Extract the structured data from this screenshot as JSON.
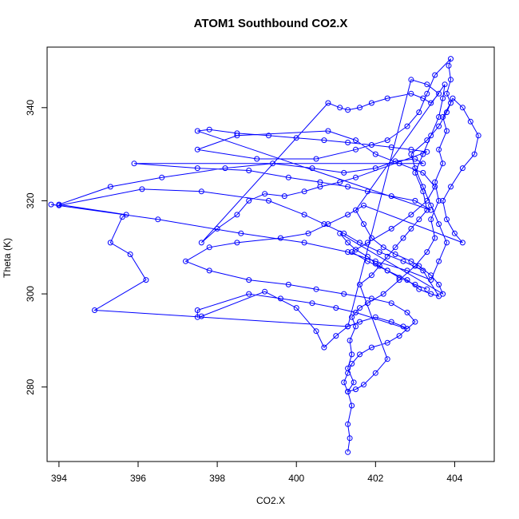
{
  "chart_data": {
    "type": "line",
    "title": "ATOM1 Southbound CO2.X",
    "xlabel": "CO2.X",
    "ylabel": "Theta (K)",
    "xlim": [
      393.7,
      405.0
    ],
    "ylim": [
      264,
      353
    ],
    "xticks": [
      394,
      396,
      398,
      400,
      402,
      404
    ],
    "yticks": [
      280,
      300,
      320,
      340
    ],
    "grid": false,
    "legend": "none",
    "marker": "open-circle",
    "color": "#0000ff",
    "series": [
      {
        "points": [
          [
            401.3,
            266
          ],
          [
            401.35,
            269
          ],
          [
            401.3,
            272
          ],
          [
            401.4,
            276
          ],
          [
            401.3,
            279
          ],
          [
            401.45,
            281
          ],
          [
            401.3,
            284
          ],
          [
            401.4,
            287
          ],
          [
            401.35,
            290
          ],
          [
            401.5,
            293
          ],
          [
            401.4,
            295
          ],
          [
            401.6,
            297
          ],
          [
            401.8,
            298
          ],
          [
            402.2,
            300
          ],
          [
            402.6,
            303
          ],
          [
            403.0,
            306
          ],
          [
            403.3,
            309
          ],
          [
            403.5,
            312
          ],
          [
            403.4,
            316
          ],
          [
            403.6,
            320
          ],
          [
            403.5,
            324
          ],
          [
            403.7,
            328
          ],
          [
            403.6,
            331
          ],
          [
            403.8,
            335
          ],
          [
            403.7,
            338
          ],
          [
            403.9,
            341
          ],
          [
            403.8,
            343
          ],
          [
            403.9,
            346
          ],
          [
            403.85,
            349
          ],
          [
            403.9,
            350.5
          ],
          [
            403.5,
            347
          ],
          [
            403.3,
            343
          ],
          [
            403.1,
            339
          ],
          [
            402.8,
            336
          ],
          [
            402.3,
            333
          ],
          [
            401.5,
            331
          ],
          [
            400.5,
            329
          ],
          [
            399.0,
            329
          ],
          [
            397.5,
            331
          ],
          [
            398.5,
            334
          ],
          [
            400.8,
            335
          ],
          [
            401.5,
            333
          ],
          [
            402.0,
            330
          ],
          [
            402.6,
            328
          ],
          [
            403.2,
            326
          ],
          [
            403.5,
            323
          ],
          [
            403.3,
            320
          ],
          [
            402.9,
            317
          ],
          [
            402.4,
            314
          ],
          [
            401.8,
            311
          ],
          [
            401.4,
            309
          ],
          [
            401.8,
            307
          ],
          [
            402.3,
            305
          ],
          [
            402.8,
            303
          ],
          [
            403.1,
            301
          ],
          [
            403.4,
            300
          ],
          [
            403.6,
            299.5
          ],
          [
            403.2,
            305
          ],
          [
            402.7,
            307
          ],
          [
            402.1,
            309
          ],
          [
            401.6,
            311
          ],
          [
            401.2,
            313
          ],
          [
            400.7,
            315
          ],
          [
            400.2,
            317
          ],
          [
            399.3,
            320
          ],
          [
            397.6,
            322
          ],
          [
            396.1,
            322.5
          ],
          [
            394.0,
            319
          ],
          [
            393.8,
            319.2
          ],
          [
            396.5,
            316
          ],
          [
            398.6,
            313
          ],
          [
            400.2,
            311
          ],
          [
            401.3,
            309
          ],
          [
            402.0,
            307
          ],
          [
            402.8,
            305
          ],
          [
            403.4,
            303
          ],
          [
            403.6,
            307
          ],
          [
            403.8,
            311
          ],
          [
            403.6,
            315
          ],
          [
            403.4,
            319
          ],
          [
            403.2,
            323
          ],
          [
            403.0,
            327
          ],
          [
            402.9,
            330
          ],
          [
            403.3,
            333
          ],
          [
            403.6,
            336
          ],
          [
            403.8,
            339
          ],
          [
            403.95,
            342
          ],
          [
            404.2,
            340
          ],
          [
            404.4,
            337
          ],
          [
            404.6,
            334
          ],
          [
            404.5,
            330
          ],
          [
            404.2,
            327
          ],
          [
            403.9,
            323
          ],
          [
            403.7,
            320
          ],
          [
            403.8,
            316
          ],
          [
            404.0,
            313
          ],
          [
            404.2,
            311
          ],
          [
            401.7,
            319
          ],
          [
            401.3,
            317
          ],
          [
            400.8,
            315
          ],
          [
            400.3,
            313
          ],
          [
            399.6,
            312
          ],
          [
            398.5,
            311
          ],
          [
            397.8,
            310
          ],
          [
            397.2,
            307
          ],
          [
            397.8,
            305
          ],
          [
            398.8,
            303
          ],
          [
            399.8,
            302
          ],
          [
            400.5,
            301
          ],
          [
            401.2,
            300
          ],
          [
            401.9,
            299
          ],
          [
            402.4,
            298
          ],
          [
            402.8,
            296
          ],
          [
            403.0,
            294
          ],
          [
            402.8,
            292.5
          ],
          [
            401.5,
            296
          ],
          [
            401.0,
            297
          ],
          [
            400.4,
            298
          ],
          [
            399.6,
            299
          ],
          [
            398.8,
            300
          ],
          [
            397.5,
            296.5
          ],
          [
            397.5,
            295
          ],
          [
            397.6,
            295.2
          ],
          [
            399.2,
            300.5
          ],
          [
            400.0,
            297
          ],
          [
            400.5,
            292
          ],
          [
            400.7,
            288.5
          ],
          [
            401.0,
            291
          ],
          [
            401.3,
            293
          ],
          [
            394.9,
            296.5
          ],
          [
            396.2,
            303
          ],
          [
            395.8,
            308.5
          ],
          [
            395.3,
            311
          ],
          [
            395.6,
            316.5
          ],
          [
            395.7,
            317
          ],
          [
            394.0,
            319.2
          ],
          [
            395.3,
            323
          ],
          [
            396.6,
            325
          ],
          [
            398.2,
            327
          ],
          [
            399.4,
            328
          ],
          [
            400.4,
            327
          ],
          [
            401.2,
            326
          ],
          [
            402.0,
            327
          ],
          [
            402.5,
            328.5
          ],
          [
            403.0,
            329
          ],
          [
            403.2,
            328
          ],
          [
            395.9,
            328
          ],
          [
            397.5,
            327
          ],
          [
            398.8,
            326.5
          ],
          [
            399.8,
            325
          ],
          [
            400.6,
            324
          ],
          [
            401.3,
            323
          ],
          [
            401.8,
            322
          ],
          [
            402.4,
            321
          ],
          [
            403.0,
            320
          ],
          [
            403.4,
            318
          ],
          [
            397.5,
            335
          ],
          [
            397.8,
            335.3
          ],
          [
            398.5,
            334.5
          ],
          [
            399.3,
            334
          ],
          [
            400.0,
            333.5
          ],
          [
            400.7,
            333
          ],
          [
            401.3,
            332.5
          ],
          [
            401.9,
            332
          ],
          [
            402.4,
            331.5
          ],
          [
            402.9,
            331
          ],
          [
            403.3,
            330.5
          ],
          [
            401.5,
            325
          ],
          [
            401.1,
            324
          ],
          [
            400.6,
            323
          ],
          [
            400.2,
            322
          ],
          [
            399.7,
            321
          ],
          [
            399.2,
            321.5
          ],
          [
            398.8,
            320
          ],
          [
            398.5,
            317
          ],
          [
            398.0,
            314
          ],
          [
            397.6,
            311
          ],
          [
            400.8,
            341
          ],
          [
            401.1,
            340
          ],
          [
            401.3,
            339.5
          ],
          [
            401.6,
            340
          ],
          [
            401.9,
            341
          ],
          [
            402.3,
            342
          ],
          [
            402.9,
            343
          ],
          [
            403.2,
            342
          ],
          [
            403.4,
            341
          ],
          [
            403.6,
            343
          ],
          [
            403.3,
            345
          ],
          [
            402.9,
            346
          ],
          [
            401.3,
            293
          ],
          [
            401.6,
            294
          ],
          [
            402.0,
            295
          ],
          [
            402.4,
            294
          ],
          [
            402.7,
            293
          ],
          [
            402.8,
            292.5
          ],
          [
            402.6,
            291
          ],
          [
            402.3,
            289.5
          ],
          [
            401.9,
            288.5
          ],
          [
            401.6,
            287
          ],
          [
            401.4,
            285
          ],
          [
            401.3,
            283
          ],
          [
            401.2,
            281
          ],
          [
            401.3,
            279
          ],
          [
            401.5,
            279.5
          ],
          [
            401.7,
            280.5
          ],
          [
            402.0,
            283
          ],
          [
            402.3,
            286
          ],
          [
            401.6,
            302
          ],
          [
            401.9,
            304
          ],
          [
            402.1,
            306
          ],
          [
            402.3,
            308
          ],
          [
            402.5,
            310
          ],
          [
            402.7,
            312
          ],
          [
            402.9,
            314
          ],
          [
            403.1,
            316
          ],
          [
            403.3,
            318
          ],
          [
            403.2,
            322
          ],
          [
            403.0,
            326
          ],
          [
            403.2,
            330
          ],
          [
            403.4,
            334
          ],
          [
            403.6,
            338
          ],
          [
            403.7,
            342
          ],
          [
            403.75,
            345
          ],
          [
            401.5,
            318
          ],
          [
            401.7,
            315
          ],
          [
            401.9,
            312
          ],
          [
            402.2,
            310
          ],
          [
            402.5,
            308.5
          ],
          [
            402.9,
            307
          ],
          [
            403.1,
            306
          ],
          [
            403.4,
            304
          ],
          [
            403.6,
            302
          ],
          [
            403.7,
            300
          ],
          [
            401.1,
            313
          ],
          [
            401.3,
            311
          ],
          [
            401.5,
            309.5
          ],
          [
            401.8,
            308
          ],
          [
            402.0,
            306.5
          ],
          [
            402.3,
            305
          ],
          [
            402.6,
            303.5
          ],
          [
            403.0,
            302
          ],
          [
            403.3,
            301
          ]
        ]
      }
    ]
  }
}
